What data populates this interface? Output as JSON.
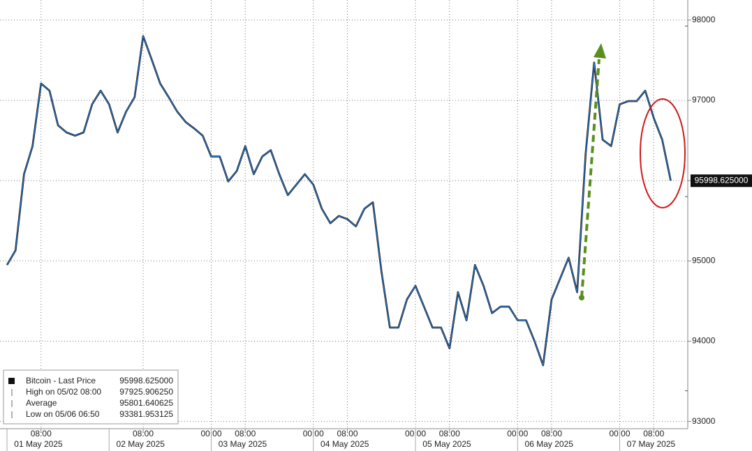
{
  "chart_data": {
    "type": "line",
    "x": [
      "2025-05-01T00:00",
      "2025-05-01T02:00",
      "2025-05-01T04:00",
      "2025-05-01T06:00",
      "2025-05-01T08:00",
      "2025-05-01T10:00",
      "2025-05-01T12:00",
      "2025-05-01T14:00",
      "2025-05-01T16:00",
      "2025-05-01T18:00",
      "2025-05-01T20:00",
      "2025-05-01T22:00",
      "2025-05-02T00:00",
      "2025-05-02T02:00",
      "2025-05-02T04:00",
      "2025-05-02T06:00",
      "2025-05-02T08:00",
      "2025-05-02T10:00",
      "2025-05-02T12:00",
      "2025-05-02T14:00",
      "2025-05-02T16:00",
      "2025-05-02T18:00",
      "2025-05-02T20:00",
      "2025-05-02T22:00",
      "2025-05-03T00:00",
      "2025-05-03T02:00",
      "2025-05-03T04:00",
      "2025-05-03T06:00",
      "2025-05-03T08:00",
      "2025-05-03T10:00",
      "2025-05-03T12:00",
      "2025-05-03T14:00",
      "2025-05-03T16:00",
      "2025-05-03T18:00",
      "2025-05-03T20:00",
      "2025-05-03T22:00",
      "2025-05-04T00:00",
      "2025-05-04T02:00",
      "2025-05-04T04:00",
      "2025-05-04T06:00",
      "2025-05-04T08:00",
      "2025-05-04T10:00",
      "2025-05-04T12:00",
      "2025-05-04T14:00",
      "2025-05-04T16:00",
      "2025-05-04T18:00",
      "2025-05-04T20:00",
      "2025-05-04T22:00",
      "2025-05-05T00:00",
      "2025-05-05T02:00",
      "2025-05-05T04:00",
      "2025-05-05T06:00",
      "2025-05-05T08:00",
      "2025-05-05T10:00",
      "2025-05-05T12:00",
      "2025-05-05T14:00",
      "2025-05-05T16:00",
      "2025-05-05T18:00",
      "2025-05-05T20:00",
      "2025-05-05T22:00",
      "2025-05-06T00:00",
      "2025-05-06T02:00",
      "2025-05-06T04:00",
      "2025-05-06T06:00",
      "2025-05-06T08:00",
      "2025-05-06T10:00",
      "2025-05-06T12:00",
      "2025-05-06T14:00",
      "2025-05-06T16:00",
      "2025-05-06T18:00",
      "2025-05-06T20:00",
      "2025-05-06T22:00",
      "2025-05-07T00:00",
      "2025-05-07T02:00",
      "2025-05-07T04:00",
      "2025-05-07T06:00",
      "2025-05-07T08:00",
      "2025-05-07T10:00",
      "2025-05-07T12:00"
    ],
    "series": [
      {
        "name": "Bitcoin - Last Price",
        "color": "#111111",
        "overlay_color": "#2f7fd8",
        "values": [
          94950,
          95130,
          96080,
          96430,
          97210,
          97120,
          96690,
          96600,
          96560,
          96600,
          96950,
          97120,
          96950,
          96600,
          96860,
          97040,
          97800,
          97510,
          97210,
          97040,
          96860,
          96730,
          96650,
          96560,
          96300,
          96300,
          95990,
          96120,
          96430,
          96080,
          96300,
          96380,
          96080,
          95820,
          95950,
          96080,
          95950,
          95650,
          95470,
          95560,
          95520,
          95430,
          95650,
          95730,
          94870,
          94170,
          94170,
          94520,
          94690,
          94430,
          94170,
          94170,
          93910,
          94610,
          94260,
          94950,
          94690,
          94350,
          94430,
          94430,
          94260,
          94260,
          94000,
          93700,
          94520,
          94780,
          95040,
          94610,
          96340,
          97470,
          96510,
          96430,
          96950,
          96990,
          96990,
          97120,
          96780,
          96510,
          95998.625
        ]
      }
    ],
    "xlim": [
      "2025-05-01T00:00",
      "2025-05-07T16:00"
    ],
    "xticks": [
      {
        "value": "2025-05-01T08:00",
        "label": "08:00"
      },
      {
        "value": "2025-05-02T08:00",
        "label": "08:00"
      },
      {
        "value": "2025-05-03T00:00",
        "label": "00:00"
      },
      {
        "value": "2025-05-03T08:00",
        "label": "08:00"
      },
      {
        "value": "2025-05-04T00:00",
        "label": "00:00"
      },
      {
        "value": "2025-05-04T08:00",
        "label": "08:00"
      },
      {
        "value": "2025-05-05T00:00",
        "label": "00:00"
      },
      {
        "value": "2025-05-05T08:00",
        "label": "08:00"
      },
      {
        "value": "2025-05-06T00:00",
        "label": "00:00"
      },
      {
        "value": "2025-05-06T08:00",
        "label": "08:00"
      },
      {
        "value": "2025-05-07T00:00",
        "label": "00:00"
      },
      {
        "value": "2025-05-07T08:00",
        "label": "08:00"
      }
    ],
    "date_ticks": [
      {
        "value": "2025-05-01T00:00",
        "label": "01 May 2025"
      },
      {
        "value": "2025-05-02T00:00",
        "label": "02 May 2025"
      },
      {
        "value": "2025-05-03T00:00",
        "label": "03 May 2025"
      },
      {
        "value": "2025-05-04T00:00",
        "label": "04 May 2025"
      },
      {
        "value": "2025-05-05T00:00",
        "label": "05 May 2025"
      },
      {
        "value": "2025-05-06T00:00",
        "label": "06 May 2025"
      },
      {
        "value": "2025-05-07T00:00",
        "label": "07 May 2025"
      }
    ],
    "ylim": [
      92910,
      98250
    ],
    "yticks": [
      93000,
      94000,
      95000,
      96000,
      97000,
      98000
    ],
    "grid": true,
    "last_price": {
      "value": 95998.625,
      "label": "95998.625000"
    },
    "legend_stats": [
      {
        "text": "High on 05/02 08:00",
        "value": 97925.90625,
        "label": "97925.906250"
      },
      {
        "text": "Average",
        "value": 95801.640625,
        "label": "95801.640625"
      },
      {
        "text": "Low on 05/06 06:50",
        "value": 93381.953125,
        "label": "93381.953125"
      }
    ]
  }
}
